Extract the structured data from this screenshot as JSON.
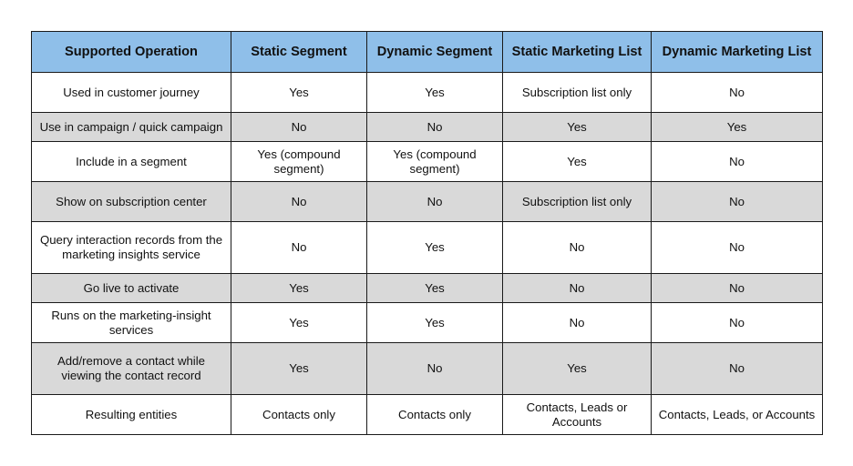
{
  "table": {
    "headers": [
      "Supported Operation",
      "Static Segment",
      "Dynamic Segment",
      "Static Marketing List",
      "Dynamic Marketing List"
    ],
    "rows": [
      {
        "cells": [
          "Used in customer journey",
          "Yes",
          "Yes",
          "Subscription list only",
          "No"
        ]
      },
      {
        "cells": [
          "Use in campaign / quick campaign",
          "No",
          "No",
          "Yes",
          "Yes"
        ]
      },
      {
        "cells": [
          "Include in a segment",
          "Yes (compound segment)",
          "Yes (compound segment)",
          "Yes",
          "No"
        ]
      },
      {
        "cells": [
          "Show on subscription center",
          "No",
          "No",
          "Subscription list only",
          "No"
        ]
      },
      {
        "cells": [
          "Query interaction records from the marketing insights service",
          "No",
          "Yes",
          "No",
          "No"
        ]
      },
      {
        "cells": [
          "Go live to activate",
          "Yes",
          "Yes",
          "No",
          "No"
        ]
      },
      {
        "cells": [
          "Runs on the marketing-insight services",
          "Yes",
          "Yes",
          "No",
          "No"
        ]
      },
      {
        "cells": [
          "Add/remove a contact while viewing the contact record",
          "Yes",
          "No",
          "Yes",
          "No"
        ]
      },
      {
        "cells": [
          "Resulting entities",
          "Contacts only",
          "Contacts only",
          "Contacts, Leads or Accounts",
          "Contacts, Leads, or Accounts"
        ]
      }
    ],
    "colors": {
      "header_bg": "#8fbfe9",
      "stripe_bg": "#d9d9d9",
      "white_bg": "#ffffff",
      "border": "#1a1a1a"
    }
  }
}
